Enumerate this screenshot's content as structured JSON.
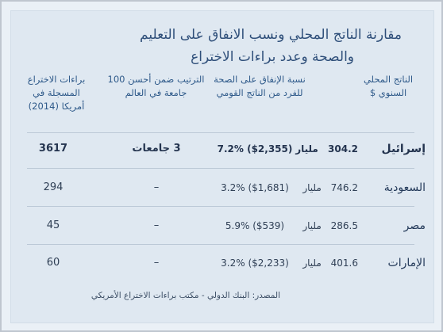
{
  "title": {
    "line1": "مقارنة الناتج المحلي ونسب الانفاق على التعليم",
    "line2": "والصحة وعدد براءات الاختراع"
  },
  "headers": {
    "gdp": [
      "الناتج المحلي",
      "السنوي $"
    ],
    "health": [
      "نسبة الإنفاق على الصحة",
      "للفرد من الناتج القومي"
    ],
    "rank": [
      "الترتيب ضمن أحسن 100",
      "جامعة في العالم"
    ],
    "patents": [
      "براءات الاختراع",
      "المسجلة في",
      "أمريكا (2014)"
    ]
  },
  "rows": [
    {
      "country": "إسرائيل",
      "gdp": "304.2",
      "unit": "مليار",
      "health": "7.2% ($2,355)",
      "rank": "3 جامعات",
      "patents": "3617",
      "bold": true
    },
    {
      "country": "السعودية",
      "gdp": "746.2",
      "unit": "مليار",
      "health": "3.2% ($1,681)",
      "rank": "–",
      "patents": "294",
      "bold": false
    },
    {
      "country": "مصر",
      "gdp": "286.5",
      "unit": "مليار",
      "health": "5.9% ($539)",
      "rank": "–",
      "patents": "45",
      "bold": false
    },
    {
      "country": "الإمارات",
      "gdp": "401.6",
      "unit": "مليار",
      "health": "3.2% ($2,233)",
      "rank": "–",
      "patents": "60",
      "bold": false
    }
  ],
  "source": "المصدر: البنك الدولي - مكتب براءات الاختراع الأمريكي"
}
